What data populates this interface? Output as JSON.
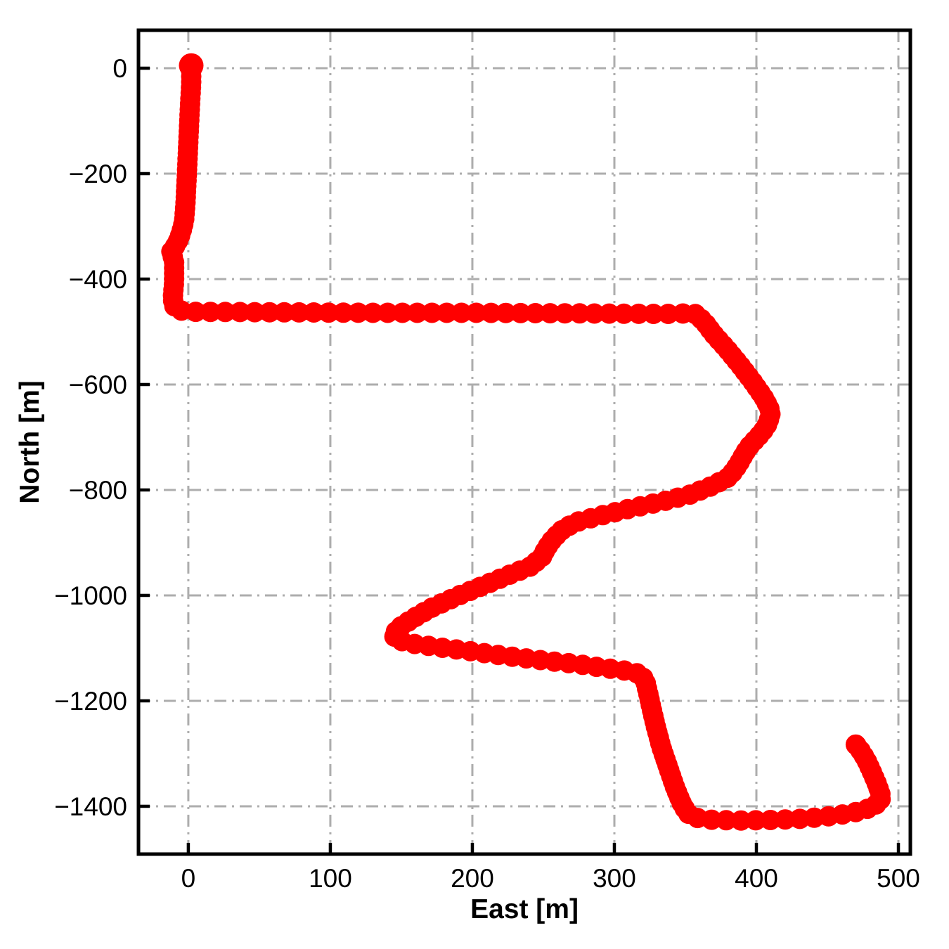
{
  "figure": {
    "background": "#ffffff",
    "type_hint": "trajectory-plot"
  },
  "chart_data": {
    "type": "line",
    "title": "",
    "xlabel": "East [m]",
    "ylabel": "North [m]",
    "xlim": [
      -35.1,
      508.4
    ],
    "ylim": [
      -1490.7,
      72.0
    ],
    "x_ticks": [
      0,
      100,
      200,
      300,
      400,
      500
    ],
    "y_ticks": [
      0,
      -200,
      -400,
      -600,
      -800,
      -1000,
      -1200,
      -1400
    ],
    "grid": true,
    "grid_line_style": "dash-dot",
    "legend": "none",
    "series": [
      {
        "name": "trajectory",
        "color": "#ff0000",
        "marker": "circle",
        "marker_spacing_m": 10.4,
        "points": [
          [
            2,
            5
          ],
          [
            2,
            -30
          ],
          [
            1,
            -80
          ],
          [
            0,
            -140
          ],
          [
            -1,
            -200
          ],
          [
            -2,
            -255
          ],
          [
            -3,
            -290
          ],
          [
            -5,
            -312
          ],
          [
            -8,
            -333
          ],
          [
            -12,
            -347
          ],
          [
            -10,
            -368
          ],
          [
            -10,
            -405
          ],
          [
            -11,
            -437
          ],
          [
            -10,
            -451
          ],
          [
            -7,
            -459
          ],
          [
            0,
            -462
          ],
          [
            60,
            -463
          ],
          [
            130,
            -464
          ],
          [
            200,
            -464
          ],
          [
            270,
            -465
          ],
          [
            320,
            -466
          ],
          [
            345,
            -466
          ],
          [
            356,
            -464
          ],
          [
            363,
            -480
          ],
          [
            370,
            -505
          ],
          [
            379,
            -532
          ],
          [
            389,
            -565
          ],
          [
            398,
            -597
          ],
          [
            405,
            -624
          ],
          [
            409,
            -644
          ],
          [
            410,
            -658
          ],
          [
            407,
            -680
          ],
          [
            401,
            -700
          ],
          [
            396,
            -714
          ],
          [
            392,
            -729
          ],
          [
            387,
            -753
          ],
          [
            381,
            -775
          ],
          [
            369,
            -792
          ],
          [
            353,
            -809
          ],
          [
            334,
            -822
          ],
          [
            313,
            -834
          ],
          [
            293,
            -847
          ],
          [
            273,
            -861
          ],
          [
            264,
            -874
          ],
          [
            257,
            -892
          ],
          [
            252,
            -911
          ],
          [
            249,
            -927
          ],
          [
            241,
            -945
          ],
          [
            226,
            -961
          ],
          [
            208,
            -981
          ],
          [
            189,
            -1002
          ],
          [
            171,
            -1024
          ],
          [
            158,
            -1044
          ],
          [
            148,
            -1062
          ],
          [
            144,
            -1076
          ],
          [
            149,
            -1086
          ],
          [
            159,
            -1092
          ],
          [
            175,
            -1098
          ],
          [
            196,
            -1105
          ],
          [
            221,
            -1114
          ],
          [
            249,
            -1123
          ],
          [
            273,
            -1130
          ],
          [
            294,
            -1138
          ],
          [
            311,
            -1144
          ],
          [
            319,
            -1150
          ],
          [
            322,
            -1165
          ],
          [
            324,
            -1188
          ],
          [
            326,
            -1212
          ],
          [
            329,
            -1247
          ],
          [
            333,
            -1287
          ],
          [
            338,
            -1327
          ],
          [
            343,
            -1366
          ],
          [
            348,
            -1398
          ],
          [
            352,
            -1414
          ],
          [
            358,
            -1422
          ],
          [
            370,
            -1426
          ],
          [
            390,
            -1427
          ],
          [
            410,
            -1426
          ],
          [
            430,
            -1424
          ],
          [
            448,
            -1420
          ],
          [
            462,
            -1415
          ],
          [
            474,
            -1409
          ],
          [
            482,
            -1401
          ],
          [
            487,
            -1391
          ],
          [
            488,
            -1382
          ],
          [
            485,
            -1358
          ],
          [
            481,
            -1333
          ],
          [
            477,
            -1310
          ],
          [
            473,
            -1293
          ],
          [
            470,
            -1283
          ]
        ]
      }
    ]
  },
  "style": {
    "grid_color": "#adadad",
    "spine_color": "#000000",
    "tick_color": "#000000",
    "trace_color": "#ff0000"
  }
}
